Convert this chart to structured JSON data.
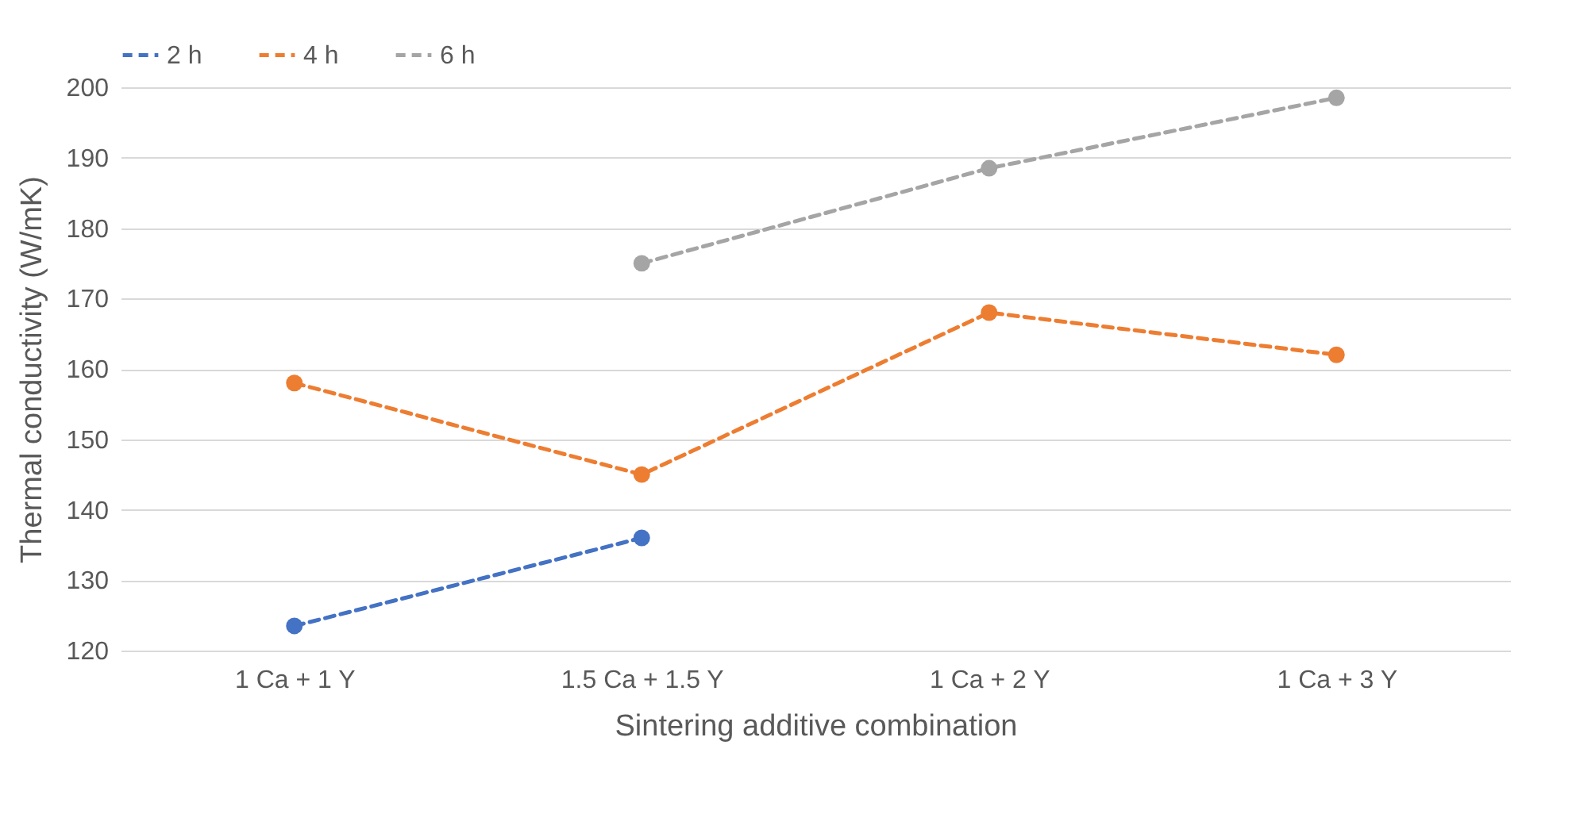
{
  "chart_data": {
    "type": "line",
    "xlabel": "Sintering additive combination",
    "ylabel": "Thermal conductivity (W/mK)",
    "categories": [
      "1 Ca + 1 Y",
      "1.5 Ca + 1.5 Y",
      "1 Ca + 2 Y",
      "1 Ca + 3 Y"
    ],
    "series": [
      {
        "name": "2 h",
        "color": "#4472c4",
        "values": [
          123.5,
          136,
          null,
          null
        ]
      },
      {
        "name": "4 h",
        "color": "#ed7d31",
        "values": [
          158,
          145,
          168,
          162
        ]
      },
      {
        "name": "6 h",
        "color": "#a5a5a5",
        "values": [
          null,
          175,
          188.5,
          198.5
        ]
      }
    ],
    "ylim": [
      120,
      200
    ],
    "yticks": [
      120,
      130,
      140,
      150,
      160,
      170,
      180,
      190,
      200
    ],
    "grid": "y",
    "legend": "top",
    "marker": "circle",
    "line_style": "dashed"
  }
}
